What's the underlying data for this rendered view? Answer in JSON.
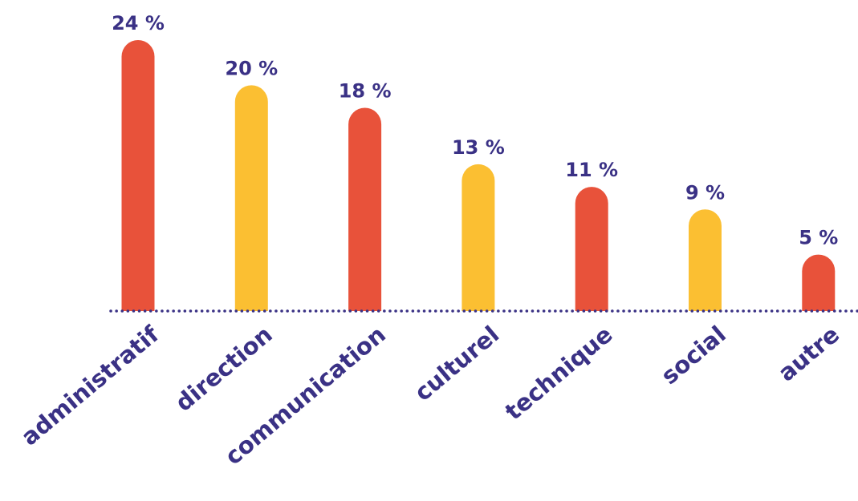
{
  "chart_data": {
    "type": "bar",
    "title": "",
    "xlabel": "",
    "ylabel": "",
    "categories": [
      "administratif",
      "direction",
      "communication",
      "culturel",
      "technique",
      "social",
      "autre"
    ],
    "values": [
      24,
      20,
      18,
      13,
      11,
      9,
      5
    ],
    "value_labels": [
      "24 %",
      "20 %",
      "18 %",
      "13 %",
      "11 %",
      "9 %",
      "5 %"
    ],
    "ylim": [
      0,
      24
    ],
    "grid": false,
    "legend": "none",
    "colors": {
      "bars": [
        "#e8523a",
        "#fbbf32",
        "#e8523a",
        "#fbbf32",
        "#e8523a",
        "#fbbf32",
        "#e8523a"
      ],
      "text": "#3a3185",
      "baseline": "#3a3185"
    }
  }
}
